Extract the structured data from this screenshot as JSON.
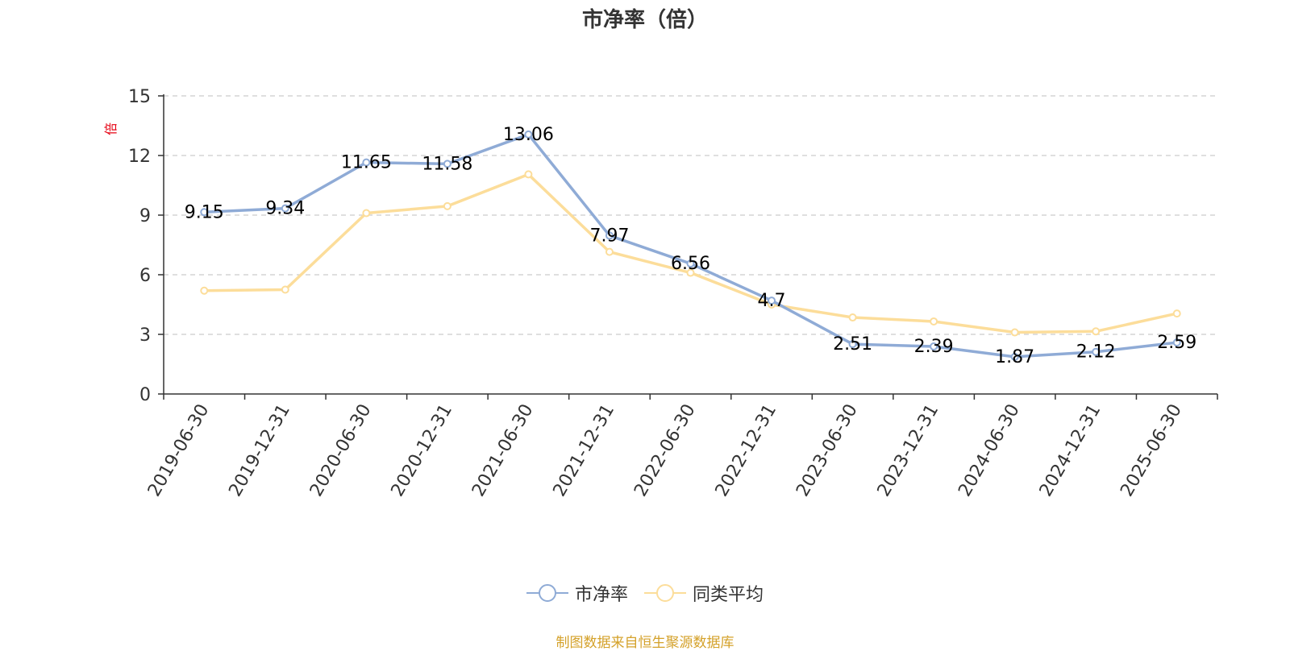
{
  "colors": {
    "series_1": "#8fabd6",
    "series_2": "#fcdd9a",
    "axis": "#333333",
    "grid": "#cccccc",
    "unit_label": "#e60012",
    "source_note": "#d4a12a"
  },
  "source_note": "制图数据来自恒生聚源数据库",
  "legend": {
    "position": "bottom-center",
    "items": [
      "市净率",
      "同类平均"
    ]
  },
  "chart_data": {
    "type": "line",
    "title": "市净率（倍）",
    "xlabel": "",
    "ylabel": "倍",
    "ylim": [
      0,
      15
    ],
    "yticks": [
      0,
      3,
      6,
      9,
      12,
      15
    ],
    "grid": "horizontal dashed",
    "categories": [
      "2019-06-30",
      "2019-12-31",
      "2020-06-30",
      "2020-12-31",
      "2021-06-30",
      "2021-12-31",
      "2022-06-30",
      "2022-12-31",
      "2023-06-30",
      "2023-12-31",
      "2024-06-30",
      "2024-12-31",
      "2025-06-30"
    ],
    "series": [
      {
        "name": "市净率",
        "values": [
          9.15,
          9.34,
          11.65,
          11.58,
          13.06,
          7.97,
          6.56,
          4.7,
          2.51,
          2.39,
          1.87,
          2.12,
          2.59
        ],
        "data_labels": [
          "9.15",
          "9.34",
          "11.65",
          "11.58",
          "13.06",
          "7.97",
          "6.56",
          "4.7",
          "2.51",
          "2.39",
          "1.87",
          "2.12",
          "2.59"
        ]
      },
      {
        "name": "同类平均",
        "values": [
          5.2,
          5.25,
          9.1,
          9.45,
          11.05,
          7.15,
          6.1,
          4.5,
          3.85,
          3.65,
          3.1,
          3.15,
          4.05
        ]
      }
    ]
  }
}
